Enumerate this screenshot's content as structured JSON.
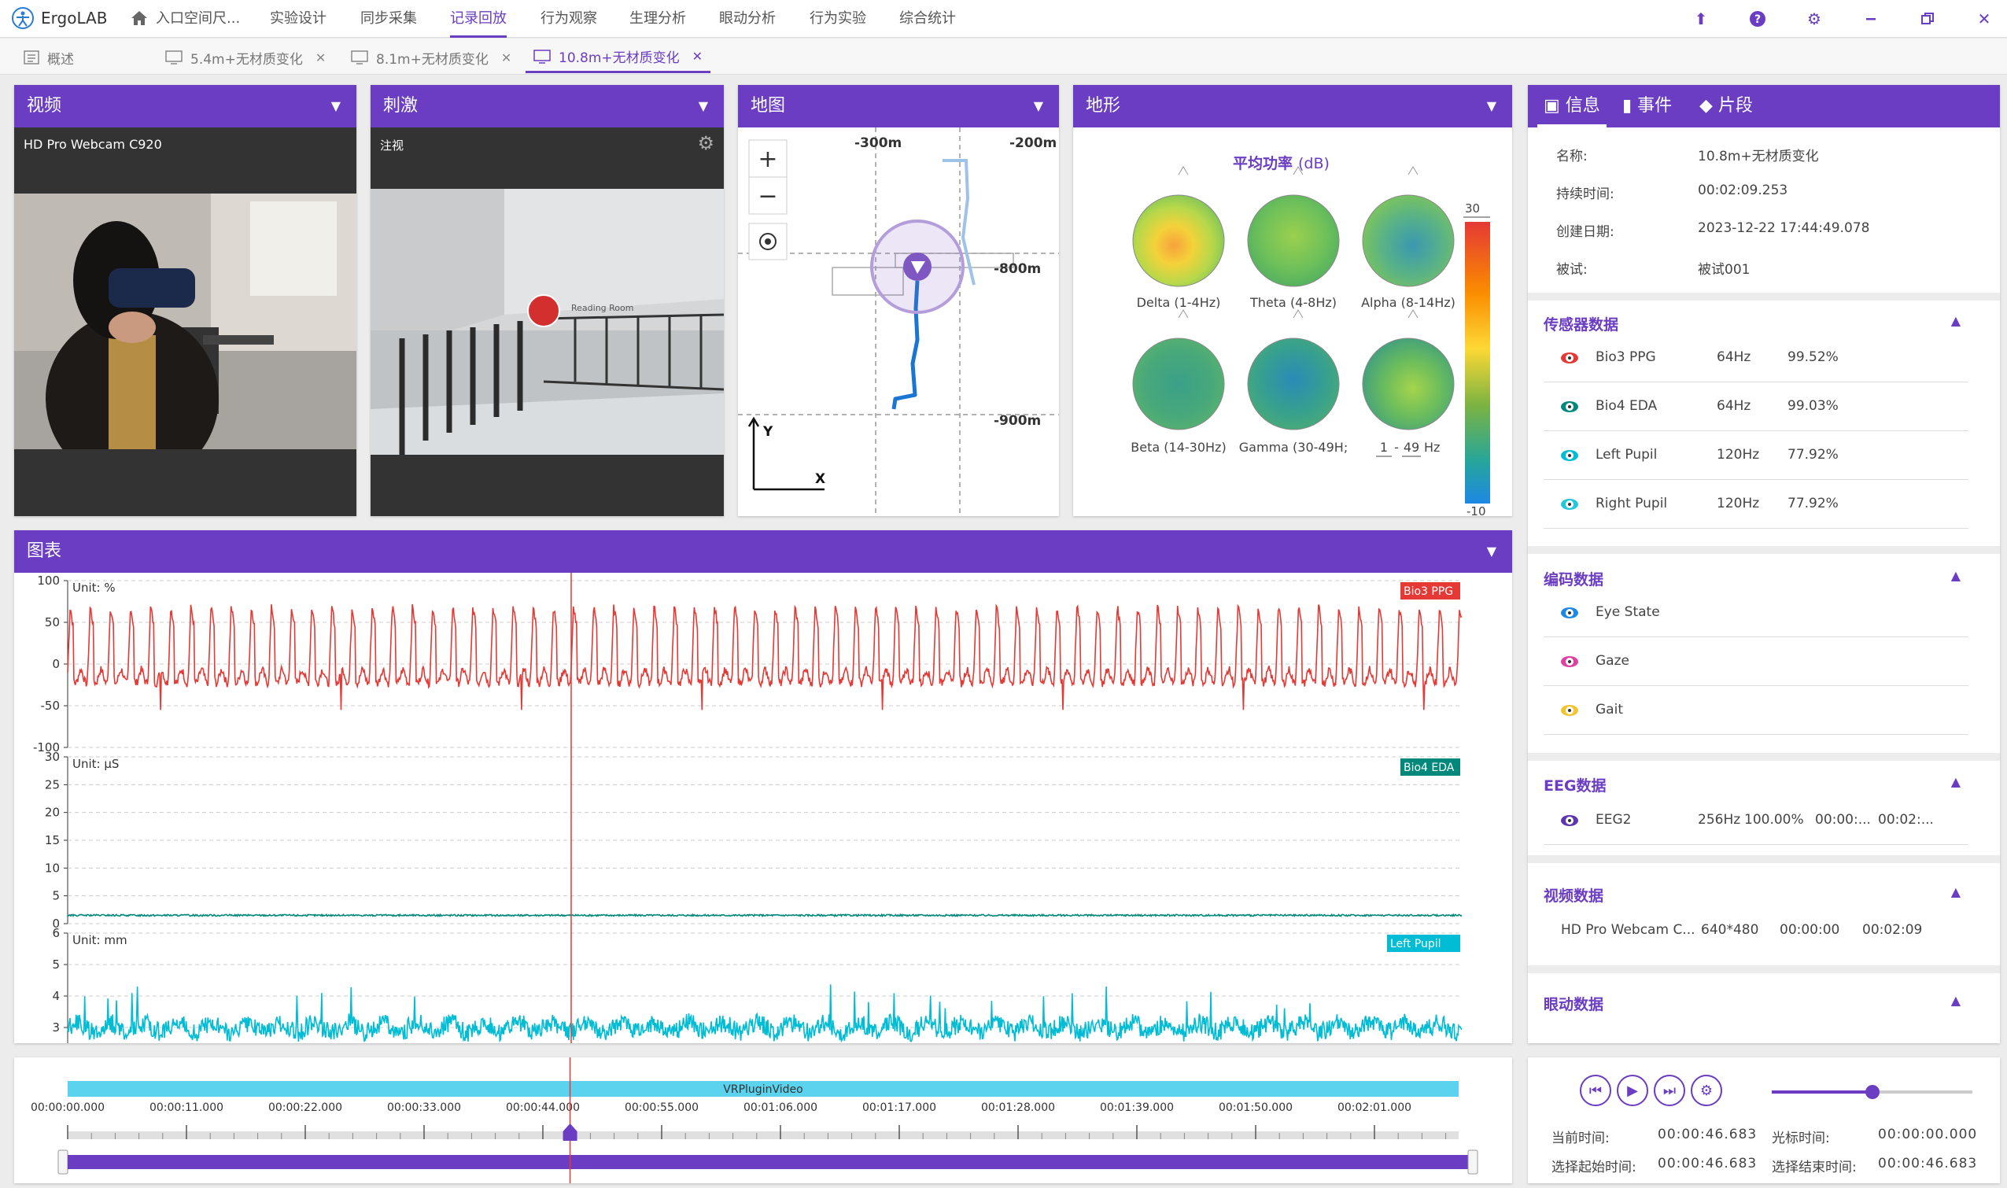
{
  "app": {
    "name": "ErgoLAB"
  },
  "menu": [
    "入口空间尺...",
    "实验设计",
    "同步采集",
    "记录回放",
    "行为观察",
    "生理分析",
    "眼动分析",
    "行为实验",
    "综合统计"
  ],
  "menu_active": 3,
  "tabs": [
    {
      "label": "概述"
    },
    {
      "label": "5.4m+无材质变化"
    },
    {
      "label": "8.1m+无材质变化"
    },
    {
      "label": "10.8m+无材质变化"
    }
  ],
  "video": {
    "title": "视频",
    "device": "HD Pro Webcam C920"
  },
  "stimulus": {
    "title": "刺激",
    "mode": "注视",
    "sign": "Reading Room"
  },
  "map": {
    "title": "地图",
    "labels": [
      "-300m",
      "-200m",
      "-800m",
      "-900m"
    ],
    "axis_y": "Y",
    "axis_x": "X"
  },
  "topo": {
    "title": "地形",
    "heading": "平均功率",
    "unit": "(dB)",
    "bands": [
      "Delta (1-4Hz)",
      "Theta (4-8Hz)",
      "Alpha (8-14Hz)",
      "Beta (14-30Hz)",
      "Gamma (30-49H;"
    ],
    "custom_low": "1",
    "custom_sep": "-",
    "custom_high": "49",
    "custom_unit": "Hz",
    "scale_max": "30",
    "scale_min": "-10"
  },
  "info_tabs": [
    "信息",
    "事件",
    "片段"
  ],
  "info": [
    {
      "label": "名称:",
      "value": "10.8m+无材质变化"
    },
    {
      "label": "持续时间:",
      "value": "00:02:09.253"
    },
    {
      "label": "创建日期:",
      "value": "2023-12-22 17:44:49.078"
    },
    {
      "label": "被试:",
      "value": "被试001"
    }
  ],
  "sensors": {
    "title": "传感器数据",
    "items": [
      {
        "name": "Bio3 PPG",
        "rate": "64Hz",
        "quality": "99.52%",
        "color": "#e53935"
      },
      {
        "name": "Bio4 EDA",
        "rate": "64Hz",
        "quality": "99.03%",
        "color": "#00897b"
      },
      {
        "name": "Left Pupil",
        "rate": "120Hz",
        "quality": "77.92%",
        "color": "#00bcd4"
      },
      {
        "name": "Right Pupil",
        "rate": "120Hz",
        "quality": "77.92%",
        "color": "#26c6da"
      }
    ]
  },
  "coding": {
    "title": "编码数据",
    "items": [
      {
        "name": "Eye State",
        "color": "#1e88e5"
      },
      {
        "name": "Gaze",
        "color": "#e040a0"
      },
      {
        "name": "Gait",
        "color": "#f4c430"
      }
    ]
  },
  "eeg": {
    "title": "EEG数据",
    "name": "EEG2",
    "rate": "256Hz",
    "quality": "100.00%",
    "start": "00:00:...",
    "end": "00:02:...",
    "color": "#5e35b1"
  },
  "videodata": {
    "title": "视频数据",
    "name": "HD Pro Webcam C...",
    "res": "640*480",
    "start": "00:00:00",
    "end": "00:02:09"
  },
  "eyedata": {
    "title": "眼动数据"
  },
  "chart": {
    "title": "图表"
  },
  "chart_data": [
    {
      "type": "line",
      "title": "",
      "ylabel": "Unit: %",
      "ylim": [
        -100,
        100
      ],
      "yticks": [
        100,
        50,
        0,
        -50,
        -100
      ],
      "series": [
        {
          "name": "Bio3 PPG",
          "color": "#e53935"
        }
      ]
    },
    {
      "type": "line",
      "title": "",
      "ylabel": "Unit: μS",
      "ylim": [
        0,
        30
      ],
      "yticks": [
        30,
        25,
        20,
        15,
        10,
        5,
        0
      ],
      "series": [
        {
          "name": "Bio4 EDA",
          "color": "#00897b",
          "values": [
            1.5
          ]
        }
      ]
    },
    {
      "type": "line",
      "title": "",
      "ylabel": "Unit: mm",
      "ylim": [
        2.5,
        6
      ],
      "yticks": [
        6,
        5,
        4,
        3
      ],
      "series": [
        {
          "name": "Left Pupil",
          "color": "#00bcd4",
          "values": [
            3.0
          ]
        }
      ]
    }
  ],
  "timeline": {
    "track": "VRPluginVideo",
    "ticks": [
      "00:00:00.000",
      "00:00:11.000",
      "00:00:22.000",
      "00:00:33.000",
      "00:00:44.000",
      "00:00:55.000",
      "00:01:06.000",
      "00:01:17.000",
      "00:01:28.000",
      "00:01:39.000",
      "00:01:50.000",
      "00:02:01.000"
    ],
    "cursor_s": 46.683,
    "duration_s": 129.253
  },
  "playback": {
    "current_label": "当前时间:",
    "current": "00:00:46.683",
    "cursor_label": "光标时间:",
    "cursor": "00:00:00.000",
    "sel_start_label": "选择起始时间:",
    "sel_start": "00:00:46.683",
    "sel_end_label": "选择结束时间:",
    "sel_end": "00:00:46.683",
    "volume": 0.5
  }
}
